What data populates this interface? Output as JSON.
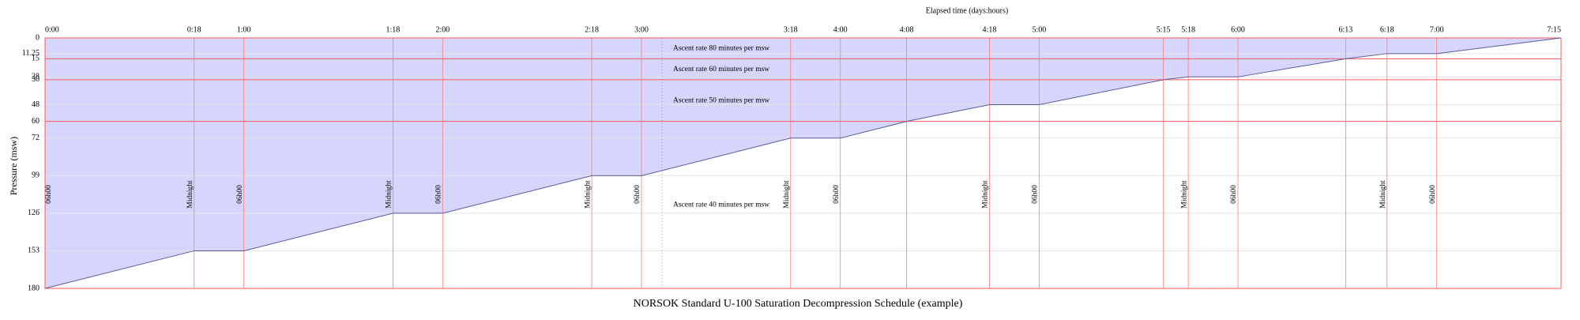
{
  "chart_data": {
    "type": "area",
    "title": "NORSOK Standard U-100 Saturation Decompression Schedule (example)",
    "x_label": "Elapsed time (days:hours)",
    "y_label": "Pressure (msw)",
    "x": [
      0,
      18,
      24,
      42,
      48,
      66,
      72,
      90,
      96,
      104,
      114,
      120,
      135,
      138,
      144,
      157,
      162,
      168,
      183
    ],
    "values": [
      180,
      153,
      153,
      126,
      126,
      99,
      99,
      72,
      72,
      60,
      48,
      48,
      30,
      28,
      28,
      15,
      11.25,
      11.25,
      0
    ],
    "xlim": [
      0,
      183
    ],
    "ylim": [
      180,
      0
    ],
    "xticks": [
      {
        "value": 0,
        "label": "0:00"
      },
      {
        "value": 18,
        "label": "0:18"
      },
      {
        "value": 24,
        "label": "1:00"
      },
      {
        "value": 42,
        "label": "1:18"
      },
      {
        "value": 48,
        "label": "2:00"
      },
      {
        "value": 66,
        "label": "2:18"
      },
      {
        "value": 72,
        "label": "3:00"
      },
      {
        "value": 90,
        "label": "3:18"
      },
      {
        "value": 96,
        "label": "4:00"
      },
      {
        "value": 104,
        "label": "4:08"
      },
      {
        "value": 114,
        "label": "4:18"
      },
      {
        "value": 120,
        "label": "5:00"
      },
      {
        "value": 135,
        "label": "5:15"
      },
      {
        "value": 138,
        "label": "5:18"
      },
      {
        "value": 144,
        "label": "6:00"
      },
      {
        "value": 157,
        "label": "6:13"
      },
      {
        "value": 162,
        "label": "6:18"
      },
      {
        "value": 168,
        "label": "7:00"
      },
      {
        "value": 183,
        "label": "7:15"
      }
    ],
    "yticks": [
      0,
      11.25,
      15,
      28,
      30,
      48,
      60,
      72,
      99,
      126,
      153,
      180
    ],
    "fill_color": "#d6d6fc",
    "line_color": "#5a5a9a",
    "grid": true,
    "xgrid_color": "#ff7a7a",
    "ygrid_color": "#e4e4e4",
    "boundary_color": "#ff5a5a",
    "annotations": [
      {
        "text": "Ascent rate 80 minutes per msw",
        "from": 0,
        "to": 15
      },
      {
        "text": "Ascent rate 60 minutes per msw",
        "from": 15,
        "to": 30
      },
      {
        "text": "Ascent rate 50 minutes per msw",
        "from": 30,
        "to": 60
      },
      {
        "text": "Ascent rate 40 minutes per msw",
        "from": 60,
        "to": 180
      }
    ],
    "clock_labels": [
      {
        "x": 0,
        "label": "06h00"
      },
      {
        "x": 18,
        "label": "Midnight"
      },
      {
        "x": 24,
        "label": "06h00"
      },
      {
        "x": 42,
        "label": "Midnight"
      },
      {
        "x": 48,
        "label": "06h00"
      },
      {
        "x": 66,
        "label": "Midnight"
      },
      {
        "x": 72,
        "label": "06h00"
      },
      {
        "x": 90,
        "label": "Midnight"
      },
      {
        "x": 96,
        "label": "06h00"
      },
      {
        "x": 114,
        "label": "Midnight"
      },
      {
        "x": 120,
        "label": "06h00"
      },
      {
        "x": 138,
        "label": "Midnight"
      },
      {
        "x": 144,
        "label": "06h00"
      },
      {
        "x": 162,
        "label": "Midnight"
      },
      {
        "x": 168,
        "label": "06h00"
      }
    ]
  }
}
